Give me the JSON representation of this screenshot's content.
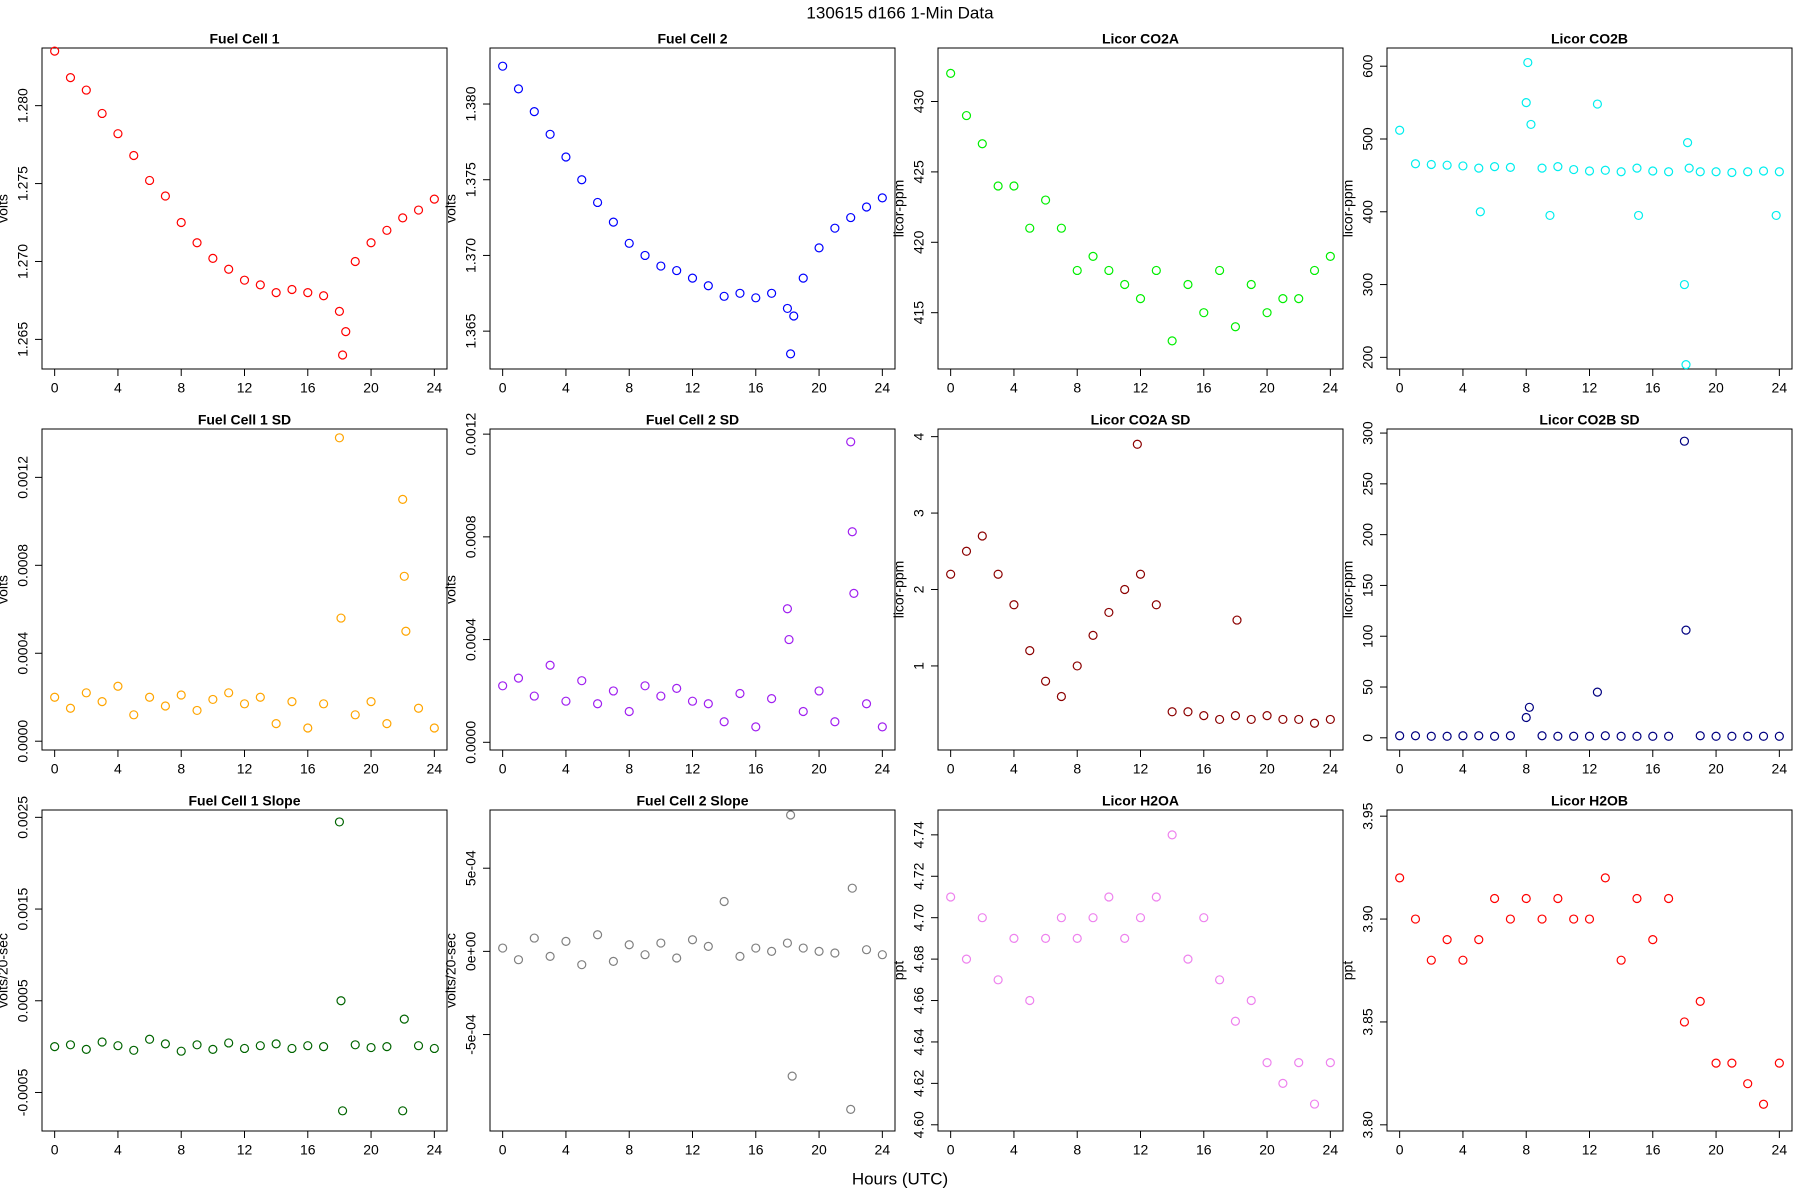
{
  "title": "130615   d166   1-Min Data",
  "xlabel": "Hours (UTC)",
  "chart_data": [
    {
      "type": "scatter",
      "title": "Fuel Cell 1",
      "ylabel": "volts",
      "color": "#ff0000",
      "x": [
        0,
        1,
        2,
        3,
        4,
        5,
        6,
        7,
        8,
        9,
        10,
        11,
        12,
        13,
        14,
        15,
        16,
        17,
        18,
        18.2,
        18.4,
        19,
        20,
        21,
        22,
        23,
        24
      ],
      "values": [
        1.2835,
        1.2818,
        1.281,
        1.2795,
        1.2782,
        1.2768,
        1.2752,
        1.2742,
        1.2725,
        1.2712,
        1.2702,
        1.2695,
        1.2688,
        1.2685,
        1.268,
        1.2682,
        1.268,
        1.2678,
        1.2668,
        1.264,
        1.2655,
        1.27,
        1.2712,
        1.272,
        1.2728,
        1.2733,
        1.274
      ],
      "xlim": [
        -0.8,
        24.8
      ],
      "xticks": [
        0,
        4,
        8,
        12,
        16,
        20,
        24
      ],
      "ylim": [
        1.2631,
        1.2837
      ],
      "yticks": [
        1.265,
        {
          "value": 1.27,
          "label": "1.270"
        },
        1.275,
        {
          "value": 1.28,
          "label": "1.280"
        }
      ]
    },
    {
      "type": "scatter",
      "title": "Fuel Cell 2",
      "ylabel": "volts",
      "color": "#0000ff",
      "x": [
        0,
        1,
        2,
        3,
        4,
        5,
        6,
        7,
        8,
        9,
        10,
        11,
        12,
        13,
        14,
        15,
        16,
        17,
        18,
        18.2,
        18.4,
        19,
        20,
        21,
        22,
        23,
        24
      ],
      "values": [
        1.3825,
        1.381,
        1.3795,
        1.378,
        1.3765,
        1.375,
        1.3735,
        1.3722,
        1.3708,
        1.37,
        1.3693,
        1.369,
        1.3685,
        1.368,
        1.3673,
        1.3675,
        1.3672,
        1.3675,
        1.3665,
        1.3635,
        1.366,
        1.3685,
        1.3705,
        1.3718,
        1.3725,
        1.3732,
        1.3738
      ],
      "xlim": [
        -0.8,
        24.8
      ],
      "xticks": [
        0,
        4,
        8,
        12,
        16,
        20,
        24
      ],
      "ylim": [
        1.3625,
        1.3837
      ],
      "yticks": [
        1.365,
        {
          "value": 1.37,
          "label": "1.370"
        },
        1.375,
        {
          "value": 1.38,
          "label": "1.380"
        }
      ]
    },
    {
      "type": "scatter",
      "title": "Licor CO2A",
      "ylabel": "licor-ppm",
      "color": "#00ee00",
      "x": [
        0,
        1,
        2,
        3,
        4,
        5,
        6,
        7,
        8,
        9,
        10,
        11,
        12,
        13,
        14,
        15,
        16,
        17,
        18,
        19,
        20,
        21,
        22,
        23,
        24
      ],
      "values": [
        432,
        429,
        427,
        424,
        424,
        421,
        423,
        421,
        418,
        419,
        418,
        417,
        416,
        418,
        413,
        417,
        415,
        418,
        414,
        417,
        415,
        416,
        416,
        418,
        419
      ],
      "xlim": [
        -0.8,
        24.8
      ],
      "xticks": [
        0,
        4,
        8,
        12,
        16,
        20,
        24
      ],
      "ylim": [
        411,
        433.8
      ],
      "yticks": [
        415,
        420,
        425,
        430
      ]
    },
    {
      "type": "scatter",
      "title": "Licor CO2B",
      "ylabel": "licor-ppm",
      "color": "#00eeee",
      "x": [
        0,
        1,
        2,
        3,
        4,
        5,
        5.1,
        6,
        7,
        8,
        8.1,
        8.3,
        9,
        9.5,
        10,
        11,
        12,
        12.5,
        13,
        14,
        15,
        15.1,
        16,
        17,
        18,
        18.1,
        18.2,
        18.3,
        19,
        20,
        21,
        22,
        23,
        23.8,
        24
      ],
      "values": [
        512,
        466,
        465,
        464,
        463,
        460,
        400,
        462,
        461,
        550,
        605,
        520,
        460,
        395,
        462,
        458,
        456,
        548,
        457,
        455,
        460,
        395,
        456,
        455,
        300,
        190,
        495,
        460,
        455,
        455,
        454,
        455,
        456,
        395,
        455
      ],
      "xlim": [
        -0.8,
        24.8
      ],
      "xticks": [
        0,
        4,
        8,
        12,
        16,
        20,
        24
      ],
      "ylim": [
        184,
        625
      ],
      "yticks": [
        200,
        300,
        400,
        500,
        600
      ]
    },
    {
      "type": "scatter",
      "title": "Fuel Cell 1 SD",
      "ylabel": "volts",
      "color": "#ffa500",
      "x": [
        0,
        1,
        2,
        3,
        4,
        5,
        6,
        7,
        8,
        9,
        10,
        11,
        12,
        13,
        14,
        15,
        16,
        17,
        18,
        18.1,
        19,
        20,
        21,
        22,
        22.1,
        22.2,
        23,
        24
      ],
      "values": [
        0.0002,
        0.00015,
        0.00022,
        0.00018,
        0.00025,
        0.00012,
        0.0002,
        0.00016,
        0.00021,
        0.00014,
        0.00019,
        0.00022,
        0.00017,
        0.0002,
        8e-05,
        0.00018,
        6e-05,
        0.00017,
        0.00138,
        0.00056,
        0.00012,
        0.00018,
        8e-05,
        0.0011,
        0.00075,
        0.0005,
        0.00015,
        6e-05
      ],
      "xlim": [
        -0.8,
        24.8
      ],
      "xticks": [
        0,
        4,
        8,
        12,
        16,
        20,
        24
      ],
      "ylim": [
        -4e-05,
        0.00142
      ],
      "yticks": [
        {
          "value": 0,
          "label": "0.0000"
        },
        0.0004,
        0.0008,
        0.0012
      ]
    },
    {
      "type": "scatter",
      "title": "Fuel Cell 2 SD",
      "ylabel": "volts",
      "color": "#a020f0",
      "x": [
        0,
        1,
        2,
        3,
        4,
        5,
        6,
        7,
        8,
        9,
        10,
        11,
        12,
        13,
        14,
        15,
        16,
        17,
        18,
        18.1,
        19,
        20,
        21,
        22,
        22.1,
        22.2,
        23,
        24
      ],
      "values": [
        0.00022,
        0.00025,
        0.00018,
        0.0003,
        0.00016,
        0.00024,
        0.00015,
        0.0002,
        0.00012,
        0.00022,
        0.00018,
        0.00021,
        0.00016,
        0.00015,
        8e-05,
        0.00019,
        6e-05,
        0.00017,
        0.00052,
        0.0004,
        0.00012,
        0.0002,
        8e-05,
        0.00117,
        0.00082,
        0.00058,
        0.00015,
        6e-05
      ],
      "xlim": [
        -0.8,
        24.8
      ],
      "xticks": [
        0,
        4,
        8,
        12,
        16,
        20,
        24
      ],
      "ylim": [
        -3e-05,
        0.00122
      ],
      "yticks": [
        {
          "value": 0,
          "label": "0.0000"
        },
        0.0004,
        0.0008,
        0.0012
      ]
    },
    {
      "type": "scatter",
      "title": "Licor CO2A SD",
      "ylabel": "licor-ppm",
      "color": "#8b0000",
      "x": [
        0,
        1,
        2,
        3,
        4,
        5,
        6,
        7,
        8,
        9,
        10,
        11,
        11.8,
        12,
        13,
        14,
        15,
        16,
        17,
        18,
        18.1,
        19,
        20,
        21,
        22,
        23,
        24
      ],
      "values": [
        2.2,
        2.5,
        2.7,
        2.2,
        1.8,
        1.2,
        0.8,
        0.6,
        1.0,
        1.4,
        1.7,
        2.0,
        3.9,
        2.2,
        1.8,
        0.4,
        0.4,
        0.35,
        0.3,
        0.35,
        1.6,
        0.3,
        0.35,
        0.3,
        0.3,
        0.25,
        0.3
      ],
      "xlim": [
        -0.8,
        24.8
      ],
      "xticks": [
        0,
        4,
        8,
        12,
        16,
        20,
        24
      ],
      "ylim": [
        -0.1,
        4.1
      ],
      "yticks": [
        1,
        2,
        3,
        4
      ]
    },
    {
      "type": "scatter",
      "title": "Licor CO2B SD",
      "ylabel": "licor-ppm",
      "color": "#000080",
      "x": [
        0,
        1,
        2,
        3,
        4,
        5,
        6,
        7,
        8,
        8.2,
        9,
        10,
        11,
        12,
        12.5,
        13,
        14,
        15,
        16,
        17,
        18,
        18.1,
        19,
        20,
        21,
        22,
        23,
        24
      ],
      "values": [
        2,
        2,
        1.5,
        1.5,
        2,
        2,
        1.5,
        2,
        20,
        30,
        2,
        1.5,
        1.5,
        1.5,
        45,
        2,
        1.5,
        1.5,
        1.5,
        1.5,
        292,
        106,
        2,
        1.5,
        1.5,
        1.5,
        1.5,
        1.5
      ],
      "xlim": [
        -0.8,
        24.8
      ],
      "xticks": [
        0,
        4,
        8,
        12,
        16,
        20,
        24
      ],
      "ylim": [
        -12,
        304
      ],
      "yticks": [
        0,
        50,
        100,
        150,
        200,
        250,
        300
      ]
    },
    {
      "type": "scatter",
      "title": "Fuel Cell 1 Slope",
      "ylabel": "volts/20-sec",
      "color": "#006400",
      "x": [
        0,
        1,
        2,
        3,
        4,
        5,
        6,
        7,
        8,
        9,
        10,
        11,
        12,
        13,
        14,
        15,
        16,
        17,
        18,
        18.1,
        18.2,
        19,
        20,
        21,
        22,
        22.1,
        23,
        24
      ],
      "values": [
        0,
        2e-05,
        -3e-05,
        5e-05,
        1e-05,
        -4e-05,
        8e-05,
        3e-05,
        -5e-05,
        2e-05,
        -3e-05,
        4e-05,
        -2e-05,
        1e-05,
        3e-05,
        -2e-05,
        1e-05,
        0,
        0.00245,
        0.0005,
        -0.0007,
        2e-05,
        -1e-05,
        0,
        -0.0007,
        0.0003,
        1e-05,
        -2e-05
      ],
      "xlim": [
        -0.8,
        24.8
      ],
      "xticks": [
        0,
        4,
        8,
        12,
        16,
        20,
        24
      ],
      "ylim": [
        -0.00092,
        0.00258
      ],
      "yticks": [
        -0.0005,
        0.0005,
        0.0015,
        0.0025
      ]
    },
    {
      "type": "scatter",
      "title": "Fuel Cell 2 Slope",
      "ylabel": "volts/20-sec",
      "color": "#808080",
      "x": [
        0,
        1,
        2,
        3,
        4,
        5,
        6,
        7,
        8,
        9,
        10,
        11,
        12,
        13,
        14,
        15,
        16,
        17,
        18,
        18.2,
        18.3,
        19,
        20,
        21,
        22,
        22.1,
        23,
        24
      ],
      "values": [
        2e-05,
        -5e-05,
        8e-05,
        -3e-05,
        6e-05,
        -8e-05,
        0.0001,
        -6e-05,
        4e-05,
        -2e-05,
        5e-05,
        -4e-05,
        7e-05,
        3e-05,
        0.0003,
        -3e-05,
        2e-05,
        0,
        5e-05,
        0.00082,
        -0.00075,
        2e-05,
        0,
        -1e-05,
        -0.00095,
        0.00038,
        1e-05,
        -2e-05
      ],
      "xlim": [
        -0.8,
        24.8
      ],
      "xticks": [
        0,
        4,
        8,
        12,
        16,
        20,
        24
      ],
      "ylim": [
        -0.00108,
        0.00085
      ],
      "yticks": [
        {
          "value": -0.0005,
          "label": "-5e-04"
        },
        {
          "value": 0,
          "label": "0e+00"
        },
        {
          "value": 0.0005,
          "label": "5e-04"
        }
      ]
    },
    {
      "type": "scatter",
      "title": "Licor H2OA",
      "ylabel": "ppt",
      "color": "#ee82ee",
      "x": [
        0,
        1,
        2,
        3,
        4,
        5,
        6,
        7,
        8,
        9,
        10,
        11,
        12,
        13,
        14,
        15,
        16,
        17,
        18,
        19,
        20,
        21,
        22,
        23,
        24
      ],
      "values": [
        4.71,
        4.68,
        4.7,
        4.67,
        4.69,
        4.66,
        4.69,
        4.7,
        4.69,
        4.7,
        4.71,
        4.69,
        4.7,
        4.71,
        4.74,
        4.68,
        4.7,
        4.67,
        4.65,
        4.66,
        4.63,
        4.62,
        4.63,
        4.61,
        4.63
      ],
      "xlim": [
        -0.8,
        24.8
      ],
      "xticks": [
        0,
        4,
        8,
        12,
        16,
        20,
        24
      ],
      "ylim": [
        4.597,
        4.752
      ],
      "yticks": [
        {
          "value": 4.6,
          "label": "4.60"
        },
        4.62,
        4.64,
        4.66,
        4.68,
        {
          "value": 4.7,
          "label": "4.70"
        },
        4.72,
        4.74
      ]
    },
    {
      "type": "scatter",
      "title": "Licor H2OB",
      "ylabel": "ppt",
      "color": "#ff0000",
      "x": [
        0,
        1,
        2,
        3,
        4,
        5,
        6,
        7,
        8,
        9,
        10,
        11,
        12,
        13,
        14,
        15,
        16,
        17,
        18,
        19,
        20,
        21,
        22,
        23,
        24
      ],
      "values": [
        3.92,
        3.9,
        3.88,
        3.89,
        3.88,
        3.89,
        3.91,
        3.9,
        3.91,
        3.9,
        3.91,
        3.9,
        3.9,
        3.92,
        3.88,
        3.91,
        3.89,
        3.91,
        3.85,
        3.86,
        3.83,
        3.83,
        3.82,
        3.81,
        3.83
      ],
      "xlim": [
        -0.8,
        24.8
      ],
      "xticks": [
        0,
        4,
        8,
        12,
        16,
        20,
        24
      ],
      "ylim": [
        3.797,
        3.953
      ],
      "yticks": [
        {
          "value": 3.8,
          "label": "3.80"
        },
        3.85,
        {
          "value": 3.9,
          "label": "3.90"
        },
        3.95
      ]
    }
  ]
}
